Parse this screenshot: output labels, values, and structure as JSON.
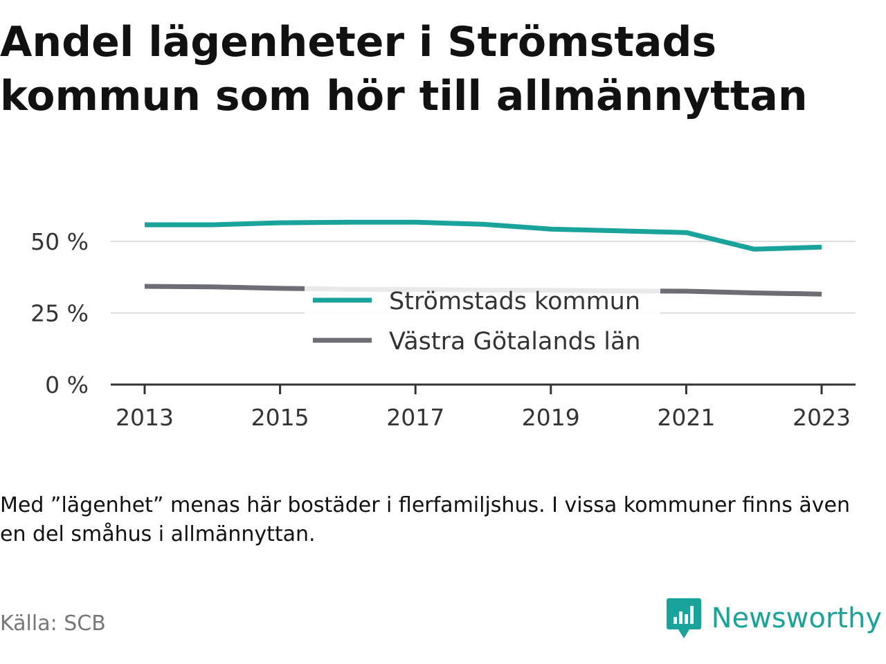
{
  "title": "Andel lägenheter i Strömstads kommun som hör till allmännyttan",
  "note": "Med ”lägenhet” menas här bostäder i flerfamiljshus. I vissa kommuner finns även en del småhus i allmännyttan.",
  "source": "Källa: SCB",
  "brand": {
    "name": "Newsworthy",
    "icon": "newsworthy-logo-icon",
    "color": "#1aa39a"
  },
  "chart_data": {
    "type": "line",
    "x": [
      2013,
      2014,
      2015,
      2016,
      2017,
      2018,
      2019,
      2020,
      2021,
      2022,
      2023
    ],
    "x_ticks": [
      "2013",
      "2015",
      "2017",
      "2019",
      "2021",
      "2023"
    ],
    "y_ticks": [
      "0 %",
      "25 %",
      "50 %"
    ],
    "y_tick_values": [
      0,
      25,
      50
    ],
    "ylim": [
      0,
      60
    ],
    "grid": true,
    "legend_position": "center",
    "series": [
      {
        "name": "Strömstads kommun",
        "color": "#1aa39a",
        "values": [
          55.8,
          55.8,
          56.5,
          56.7,
          56.7,
          56.0,
          54.3,
          53.7,
          53.1,
          47.3,
          48.0
        ]
      },
      {
        "name": "Västra Götalands län",
        "color": "#6e6c74",
        "values": [
          34.3,
          34.1,
          33.6,
          33.3,
          33.2,
          33.0,
          32.9,
          32.7,
          32.6,
          32.0,
          31.6
        ]
      }
    ]
  }
}
